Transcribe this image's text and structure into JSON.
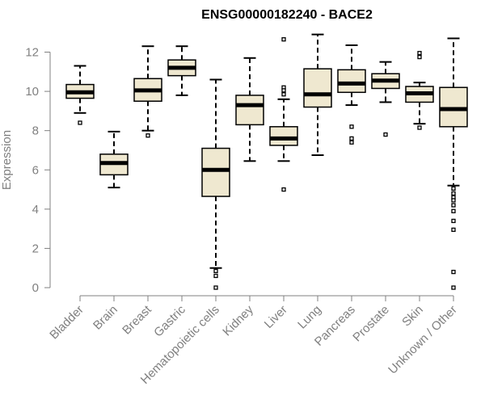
{
  "chart_data": {
    "type": "boxplot",
    "title": "ENSG00000182240 - BACE2",
    "xlabel": "",
    "ylabel": "Expression",
    "ylim": [
      0,
      12.5
    ],
    "yticks": [
      0,
      2,
      4,
      6,
      8,
      10,
      12
    ],
    "grid": false,
    "categories": [
      "Bladder",
      "Brain",
      "Breast",
      "Gastric",
      "Hematopoietic cells",
      "Kidney",
      "Liver",
      "Lung",
      "Pancreas",
      "Prostate",
      "Skin",
      "Unknown / Other"
    ],
    "boxes": [
      {
        "category": "Bladder",
        "whisker_low": 8.9,
        "q1": 9.65,
        "median": 9.95,
        "q3": 10.35,
        "whisker_high": 11.3,
        "outliers": [
          8.4
        ]
      },
      {
        "category": "Brain",
        "whisker_low": 5.1,
        "q1": 5.75,
        "median": 6.35,
        "q3": 6.8,
        "whisker_high": 7.95,
        "outliers": []
      },
      {
        "category": "Breast",
        "whisker_low": 8.0,
        "q1": 9.5,
        "median": 10.05,
        "q3": 10.65,
        "whisker_high": 12.3,
        "outliers": [
          7.75
        ]
      },
      {
        "category": "Gastric",
        "whisker_low": 9.8,
        "q1": 10.8,
        "median": 11.2,
        "q3": 11.6,
        "whisker_high": 12.3,
        "outliers": []
      },
      {
        "category": "Hematopoietic cells",
        "whisker_low": 1.0,
        "q1": 4.65,
        "median": 6.0,
        "q3": 7.1,
        "whisker_high": 10.6,
        "outliers": [
          0.85,
          0.6,
          0.0
        ]
      },
      {
        "category": "Kidney",
        "whisker_low": 6.45,
        "q1": 8.3,
        "median": 9.3,
        "q3": 9.8,
        "whisker_high": 11.7,
        "outliers": []
      },
      {
        "category": "Liver",
        "whisker_low": 6.45,
        "q1": 7.25,
        "median": 7.6,
        "q3": 8.2,
        "whisker_high": 9.6,
        "outliers": [
          12.65,
          10.2,
          10.05,
          9.85,
          5.0
        ]
      },
      {
        "category": "Lung",
        "whisker_low": 6.75,
        "q1": 9.2,
        "median": 9.85,
        "q3": 11.15,
        "whisker_high": 12.9,
        "outliers": []
      },
      {
        "category": "Pancreas",
        "whisker_low": 9.3,
        "q1": 9.95,
        "median": 10.4,
        "q3": 11.1,
        "whisker_high": 12.35,
        "outliers": [
          8.2,
          7.6,
          7.4
        ]
      },
      {
        "category": "Prostate",
        "whisker_low": 9.45,
        "q1": 10.15,
        "median": 10.55,
        "q3": 10.9,
        "whisker_high": 11.5,
        "outliers": [
          7.8
        ]
      },
      {
        "category": "Skin",
        "whisker_low": 8.35,
        "q1": 9.45,
        "median": 9.9,
        "q3": 10.25,
        "whisker_high": 10.45,
        "outliers": [
          11.95,
          11.75,
          8.15
        ]
      },
      {
        "category": "Unknown / Other",
        "whisker_low": 5.2,
        "q1": 8.2,
        "median": 9.1,
        "q3": 10.2,
        "whisker_high": 12.7,
        "outliers": [
          5.05,
          4.8,
          4.6,
          4.45,
          4.2,
          3.9,
          3.4,
          2.95,
          0.8,
          0.0
        ]
      }
    ],
    "colors": {
      "box_fill": "#efe8d0",
      "box_stroke": "#000000",
      "median": "#000000",
      "whisker": "#000000",
      "axis": "#808080",
      "tick_text": "#808080",
      "title_text": "#000000"
    }
  }
}
